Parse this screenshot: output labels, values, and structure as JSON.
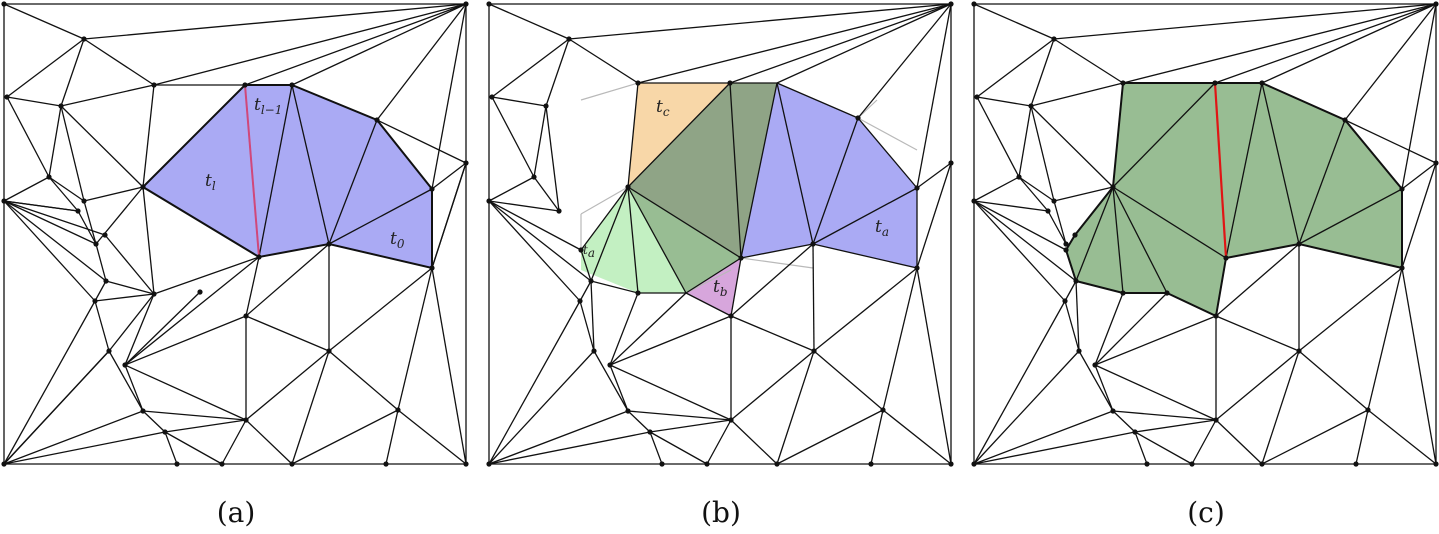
{
  "panels": [
    {
      "caption": "(a)",
      "labels": {
        "t_l": "t",
        "t_l_sub": "l",
        "t_l1": "t",
        "t_l1_sub": "l−1",
        "t_0": "t",
        "t_0_sub": "0"
      }
    },
    {
      "caption": "(b)",
      "labels": {
        "t_c": "t",
        "t_c_sub": "c",
        "t_b": "t",
        "t_b_sub": "b",
        "t_a": "t",
        "t_a_sub": "a",
        "t_side": "t",
        "t_side_sub": "a"
      }
    },
    {
      "caption": "(c)",
      "labels": {}
    }
  ],
  "colors": {
    "blue_region": "#aaaaf4",
    "green_region": "#98bd93",
    "orange_region": "#f8d7a8",
    "light_green_region": "#c3f0c2",
    "purple_region": "#d7a6dc",
    "dark_region": "#8fa486",
    "red_edge": "#e01515",
    "pink_edge": "#d0487a"
  }
}
